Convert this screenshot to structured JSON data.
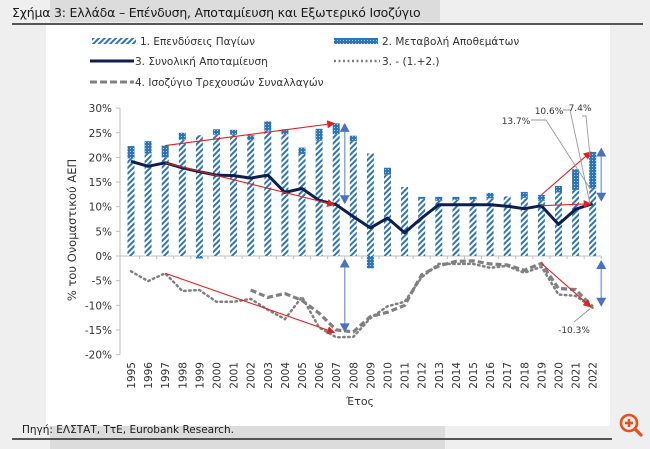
{
  "header": {
    "title": "Σχήμα 3: Ελλάδα – Επένδυση, Αποταμίευση και Εξωτερικό Ισοζύγιο"
  },
  "footer": {
    "source": "Πηγή: ΕΛΣΤΑΤ, ΤτΕ, Eurobank Research."
  },
  "zoom_button": {
    "icon": "zoom-in-icon",
    "color": "#e8501c"
  },
  "chart_data": {
    "type": "bar",
    "title": "Σχήμα 3: Ελλάδα – Επένδυση, Αποταμίευση και Εξωτερικό Ισοζύγιο",
    "xlabel": "Έτος",
    "ylabel": "% του Ονομαστικού ΑΕΠ",
    "ylim": [
      -20,
      30
    ],
    "yticks": [
      30,
      25,
      20,
      15,
      10,
      5,
      0,
      -5,
      -10,
      -15,
      -20
    ],
    "ytick_labels": [
      "30%",
      "25%",
      "20%",
      "15%",
      "10%",
      "5%",
      "0%",
      "-5%",
      "-10%",
      "-15%",
      "-20%"
    ],
    "grid": false,
    "legend_position": "top",
    "categories": [
      "1995",
      "1996",
      "1997",
      "1998",
      "1999",
      "2000",
      "2001",
      "2002",
      "2003",
      "2004",
      "2005",
      "2006",
      "2007",
      "2008",
      "2009",
      "2010",
      "2011",
      "2012",
      "2013",
      "2014",
      "2015",
      "2016",
      "2017",
      "2018",
      "2019",
      "2020",
      "2021",
      "2022"
    ],
    "series": [
      {
        "name": "1. Επενδύσεις Παγίων",
        "kind": "bar-hatched",
        "color": "#2e75b6",
        "values": [
          19.8,
          20.8,
          20.0,
          23.6,
          24.5,
          24.6,
          24.6,
          23.5,
          25.4,
          24.7,
          20.7,
          23.4,
          24.7,
          23.3,
          20.8,
          16.5,
          14.0,
          11.6,
          11.2,
          11.4,
          11.4,
          11.7,
          12.1,
          11.8,
          11.2,
          12.9,
          13.4,
          13.7
        ]
      },
      {
        "name": "2. Μεταβολή Αποθεμάτων",
        "kind": "bar-dotted",
        "color": "#2e75b6",
        "values": [
          2.5,
          2.5,
          2.4,
          1.4,
          -0.5,
          1.1,
          1.0,
          1.0,
          1.9,
          1.0,
          1.3,
          2.4,
          2.2,
          1.1,
          -2.5,
          1.4,
          0.0,
          0.4,
          0.8,
          0.6,
          0.6,
          1.1,
          0.0,
          1.2,
          1.2,
          1.3,
          4.2,
          7.4
        ]
      },
      {
        "name": "3. Συνολική Αποταμίευση",
        "kind": "line-solid",
        "color": "#0d1f4f",
        "values": [
          19.2,
          18.2,
          18.9,
          17.9,
          17.1,
          16.4,
          16.3,
          15.8,
          16.4,
          12.9,
          13.7,
          11.3,
          10.4,
          8.0,
          5.7,
          7.7,
          4.7,
          7.7,
          10.4,
          10.4,
          10.4,
          10.4,
          10.1,
          9.6,
          10.2,
          6.4,
          9.5,
          10.6
        ]
      },
      {
        "name": "3. - (1.+2.)",
        "kind": "line-dotted",
        "color": "#808080",
        "values": [
          -3.1,
          -5.1,
          -3.5,
          -7.1,
          -6.9,
          -9.3,
          -9.3,
          -8.7,
          -10.9,
          -12.8,
          -8.3,
          -14.5,
          -16.5,
          -16.4,
          -12.6,
          -10.2,
          -9.3,
          -4.3,
          -1.6,
          -1.6,
          -1.6,
          -2.4,
          -2.0,
          -3.4,
          -2.2,
          -7.8,
          -8.1,
          -10.5
        ]
      },
      {
        "name": "4. Ισοζύγιο Τρεχουσών Συναλλαγών",
        "kind": "line-dashed",
        "color": "#808080",
        "values": [
          null,
          null,
          null,
          null,
          null,
          null,
          null,
          -6.9,
          -8.4,
          -7.6,
          -9.0,
          -11.6,
          -15.0,
          -15.4,
          -12.3,
          -11.4,
          -10.0,
          -3.8,
          -2.0,
          -1.1,
          -1.0,
          -1.6,
          -1.8,
          -2.9,
          -1.5,
          -6.6,
          -6.8,
          -10.3
        ]
      }
    ],
    "annotations": [
      {
        "text": "13.7%",
        "target_year": "2022",
        "target_value": 13.7
      },
      {
        "text": "10.6%",
        "target_year": "2022",
        "target_value": 10.6
      },
      {
        "text": "7.4%",
        "target_year": "2022",
        "target_value": 21.1
      },
      {
        "text": "-10.3%",
        "target_year": "2022",
        "target_value": -10.3
      }
    ],
    "trend_arrows": [
      {
        "from_year": "1997",
        "from_value": 22.4,
        "to_year": "2007",
        "to_value": 26.9,
        "color": "#e02020"
      },
      {
        "from_year": "1997",
        "from_value": 18.9,
        "to_year": "2007",
        "to_value": 10.4,
        "color": "#e02020"
      },
      {
        "from_year": "1997",
        "from_value": -3.5,
        "to_year": "2007",
        "to_value": -15.5,
        "color": "#e02020"
      },
      {
        "from_year": "2019",
        "from_value": 12.4,
        "to_year": "2022",
        "to_value": 21.1,
        "color": "#e02020"
      },
      {
        "from_year": "2019",
        "from_value": 10.2,
        "to_year": "2022",
        "to_value": 10.6,
        "color": "#e02020"
      },
      {
        "from_year": "2019",
        "from_value": -1.5,
        "to_year": "2022",
        "to_value": -10.3,
        "color": "#e02020"
      }
    ],
    "range_arrows": [
      {
        "year": "2007.5",
        "from_value": 27.0,
        "to_value": 10.5,
        "color": "#4a72c0"
      },
      {
        "year": "2007.5",
        "from_value": -0.5,
        "to_value": -15.5,
        "color": "#4a72c0"
      },
      {
        "year": "2022.5",
        "from_value": 22.0,
        "to_value": 11.0,
        "color": "#4a72c0"
      },
      {
        "year": "2022.5",
        "from_value": -0.8,
        "to_value": -10.3,
        "color": "#4a72c0"
      }
    ]
  }
}
